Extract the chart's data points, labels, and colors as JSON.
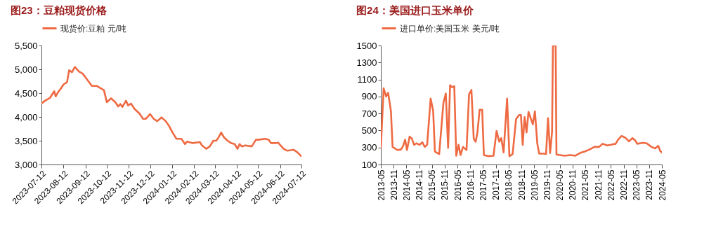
{
  "chart_data": [
    {
      "type": "line",
      "title": "图23：豆粕现货价格",
      "legend": "top",
      "grid": false,
      "x": [
        "2023-07-12",
        "2023-07-17",
        "2023-07-24",
        "2023-07-27",
        "2023-07-30",
        "2023-08-01",
        "2023-08-04",
        "2023-08-09",
        "2023-08-12",
        "2023-08-17",
        "2023-08-20",
        "2023-08-24",
        "2023-08-28",
        "2023-09-03",
        "2023-09-08",
        "2023-09-14",
        "2023-09-21",
        "2023-09-28",
        "2023-10-08",
        "2023-10-12",
        "2023-10-18",
        "2023-10-24",
        "2023-10-28",
        "2023-10-31",
        "2023-11-03",
        "2023-11-08",
        "2023-11-11",
        "2023-11-15",
        "2023-11-20",
        "2023-11-27",
        "2023-12-02",
        "2023-12-06",
        "2023-12-12",
        "2023-12-17",
        "2023-12-22",
        "2023-12-28",
        "2024-01-03",
        "2024-01-08",
        "2024-01-13",
        "2024-01-18",
        "2024-01-25",
        "2024-01-30",
        "2024-02-02",
        "2024-02-10",
        "2024-02-20",
        "2024-02-23",
        "2024-02-29",
        "2024-03-05",
        "2024-03-10",
        "2024-03-14",
        "2024-03-17",
        "2024-03-21",
        "2024-03-25",
        "2024-03-30",
        "2024-04-04",
        "2024-04-09",
        "2024-04-13",
        "2024-04-16",
        "2024-04-19",
        "2024-04-24",
        "2024-05-03",
        "2024-05-09",
        "2024-05-13",
        "2024-05-22",
        "2024-05-27",
        "2024-05-30",
        "2024-06-06",
        "2024-06-09",
        "2024-06-17",
        "2024-06-22",
        "2024-07-01",
        "2024-07-06",
        "2024-07-12"
      ],
      "series": [
        {
          "name": "现货价:豆粕 元/吨",
          "color": "#ee6a42",
          "values": [
            4280,
            4340,
            4400,
            4470,
            4540,
            4430,
            4510,
            4610,
            4680,
            4730,
            4980,
            4940,
            5050,
            4950,
            4910,
            4790,
            4650,
            4650,
            4560,
            4310,
            4390,
            4310,
            4220,
            4270,
            4210,
            4340,
            4240,
            4280,
            4170,
            4070,
            3960,
            3960,
            4060,
            3960,
            3910,
            3990,
            3910,
            3800,
            3660,
            3540,
            3540,
            3430,
            3480,
            3450,
            3470,
            3400,
            3330,
            3380,
            3500,
            3500,
            3560,
            3670,
            3570,
            3500,
            3450,
            3430,
            3330,
            3430,
            3380,
            3400,
            3380,
            3520,
            3520,
            3540,
            3520,
            3450,
            3450,
            3460,
            3330,
            3290,
            3310,
            3260,
            3170
          ]
        }
      ],
      "xlim": [
        "2023-07-12",
        "2024-07-12"
      ],
      "xticks": [
        "2023-07-12",
        "2023-08-12",
        "2023-09-12",
        "2023-10-12",
        "2023-11-12",
        "2023-12-12",
        "2024-01-12",
        "2024-02-12",
        "2024-03-12",
        "2024-04-12",
        "2024-05-12",
        "2024-06-12",
        "2024-07-12"
      ],
      "ylim": [
        3000,
        5500
      ],
      "yticks": [
        {
          "value": 3000,
          "label": "3,000"
        },
        {
          "value": 3500,
          "label": "3,500"
        },
        {
          "value": 4000,
          "label": "4,000"
        },
        {
          "value": 4500,
          "label": "4,500"
        },
        {
          "value": 5000,
          "label": "5,000"
        },
        {
          "value": 5500,
          "label": "5,500"
        }
      ]
    },
    {
      "type": "line",
      "title": "图24：美国进口玉米单价",
      "legend": "top",
      "grid": false,
      "x": [
        "2013-05-01",
        "2013-06-10",
        "2013-07-16",
        "2013-08-13",
        "2013-09-22",
        "2013-10-16",
        "2013-12-22",
        "2014-02-13",
        "2014-03-16",
        "2014-04-13",
        "2014-05-10",
        "2014-06-16",
        "2014-07-19",
        "2014-08-19",
        "2014-09-22",
        "2014-11-07",
        "2014-12-16",
        "2015-01-19",
        "2015-02-22",
        "2015-04-13",
        "2015-05-19",
        "2015-06-13",
        "2015-08-13",
        "2015-10-13",
        "2015-11-16",
        "2015-12-19",
        "2016-01-16",
        "2016-02-13",
        "2016-03-16",
        "2016-04-13",
        "2016-05-16",
        "2016-06-13",
        "2016-07-19",
        "2016-09-07",
        "2016-10-13",
        "2016-11-16",
        "2016-12-19",
        "2017-01-16",
        "2017-02-10",
        "2017-03-13",
        "2017-04-19",
        "2017-05-13",
        "2017-07-10",
        "2017-09-28",
        "2017-11-10",
        "2017-12-19",
        "2018-01-16",
        "2018-02-19",
        "2018-04-10",
        "2018-05-13",
        "2018-06-28",
        "2018-08-16",
        "2018-09-28",
        "2018-10-25",
        "2018-11-19",
        "2018-12-16",
        "2019-01-13",
        "2019-02-10",
        "2019-04-13",
        "2019-05-13",
        "2019-06-16",
        "2019-07-13",
        "2019-09-22",
        "2019-10-19",
        "2019-11-16",
        "2019-12-16",
        "2020-01-13",
        "2020-01-25",
        "2020-03-04",
        "2020-03-16",
        "2020-07-07",
        "2020-10-01",
        "2020-12-10",
        "2021-02-16",
        "2021-04-22",
        "2021-07-01",
        "2021-09-07",
        "2021-11-16",
        "2022-01-04",
        "2022-03-13",
        "2022-05-04",
        "2022-07-10",
        "2022-08-13",
        "2022-10-04",
        "2022-11-25",
        "2023-01-16",
        "2023-03-07",
        "2023-04-19",
        "2023-05-13",
        "2023-08-07",
        "2023-09-28",
        "2023-12-04",
        "2024-01-25",
        "2024-03-10",
        "2024-04-07",
        "2024-05-01"
      ],
      "series": [
        {
          "name": "进口单价:美国玉米 美元/吨",
          "color": "#ee6a42",
          "values": [
            295,
            997,
            900,
            944,
            730,
            307,
            271,
            276,
            320,
            392,
            271,
            428,
            404,
            332,
            349,
            332,
            361,
            307,
            332,
            876,
            731,
            252,
            223,
            827,
            936,
            295,
            1033,
            1009,
            1021,
            203,
            332,
            211,
            307,
            271,
            924,
            977,
            404,
            368,
            477,
            743,
            743,
            211,
            198,
            203,
            494,
            368,
            411,
            242,
            876,
            198,
            223,
            634,
            682,
            682,
            332,
            658,
            477,
            719,
            573,
            726,
            344,
            228,
            228,
            223,
            646,
            235,
            489,
            1500,
            1500,
            218,
            203,
            211,
            203,
            235,
            252,
            276,
            307,
            307,
            344,
            324,
            332,
            344,
            392,
            436,
            416,
            373,
            411,
            380,
            344,
            356,
            349,
            307,
            290,
            320,
            259,
            242
          ]
        }
      ],
      "xlim": [
        "2013-05",
        "2024-05"
      ],
      "xticks": [
        "2013-05",
        "2013-11",
        "2014-05",
        "2014-11",
        "2015-05",
        "2015-11",
        "2016-05",
        "2016-11",
        "2017-05",
        "2017-11",
        "2018-05",
        "2018-11",
        "2019-05",
        "2019-11",
        "2020-05",
        "2020-11",
        "2021-05",
        "2021-11",
        "2022-05",
        "2022-11",
        "2023-05",
        "2023-11",
        "2024-05"
      ],
      "ylim": [
        100,
        1500
      ],
      "yticks": [
        100,
        300,
        500,
        700,
        900,
        1100,
        1300,
        1500
      ]
    }
  ]
}
